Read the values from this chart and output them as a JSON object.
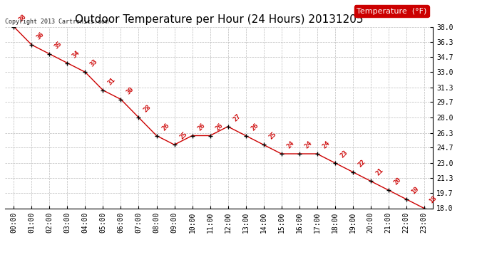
{
  "title": "Outdoor Temperature per Hour (24 Hours) 20131205",
  "copyright": "Copyright 2013 Cartronics.com",
  "legend_label": "Temperature  (°F)",
  "hours": [
    "00:00",
    "01:00",
    "02:00",
    "03:00",
    "04:00",
    "05:00",
    "06:00",
    "07:00",
    "08:00",
    "09:00",
    "10:00",
    "11:00",
    "12:00",
    "13:00",
    "14:00",
    "15:00",
    "16:00",
    "17:00",
    "18:00",
    "19:00",
    "20:00",
    "21:00",
    "22:00",
    "23:00"
  ],
  "temps": [
    38,
    36,
    35,
    34,
    33,
    31,
    30,
    28,
    26,
    25,
    26,
    26,
    27,
    26,
    25,
    24,
    24,
    24,
    23,
    22,
    21,
    20,
    19,
    18
  ],
  "line_color": "#cc0000",
  "marker_color": "#000000",
  "label_color": "#cc0000",
  "background_color": "#ffffff",
  "grid_color": "#bbbbbb",
  "ylim_min": 18.0,
  "ylim_max": 38.0,
  "ytick_values": [
    18.0,
    19.7,
    21.3,
    23.0,
    24.7,
    26.3,
    28.0,
    29.7,
    31.3,
    33.0,
    34.7,
    36.3,
    38.0
  ],
  "ytick_labels": [
    "18.0",
    "19.7",
    "21.3",
    "23.0",
    "24.7",
    "26.3",
    "28.0",
    "29.7",
    "31.3",
    "33.0",
    "34.7",
    "36.3",
    "38.0"
  ],
  "title_fontsize": 11,
  "label_fontsize": 6.5,
  "tick_fontsize": 7,
  "legend_fontsize": 8,
  "copyright_fontsize": 6
}
